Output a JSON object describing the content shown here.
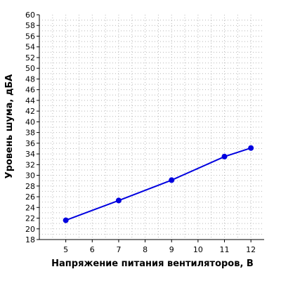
{
  "chart_data": {
    "type": "line",
    "xlabel": "Напряжение питания вентиляторов, В",
    "ylabel": "Уровень шума, дБА",
    "x_ticks": [
      5,
      6,
      7,
      8,
      9,
      10,
      11,
      12
    ],
    "y_ticks": [
      18,
      20,
      22,
      24,
      26,
      28,
      30,
      32,
      34,
      36,
      38,
      40,
      42,
      44,
      46,
      48,
      50,
      52,
      54,
      56,
      58,
      60
    ],
    "xlim": [
      4,
      12.5
    ],
    "ylim": [
      18,
      60
    ],
    "grid": true,
    "series": [
      {
        "color": "#0000e0",
        "points": [
          {
            "x": 5,
            "y": 21.6
          },
          {
            "x": 7,
            "y": 25.3
          },
          {
            "x": 9,
            "y": 29.1
          },
          {
            "x": 11,
            "y": 33.5
          },
          {
            "x": 12,
            "y": 35.1
          }
        ]
      }
    ]
  }
}
